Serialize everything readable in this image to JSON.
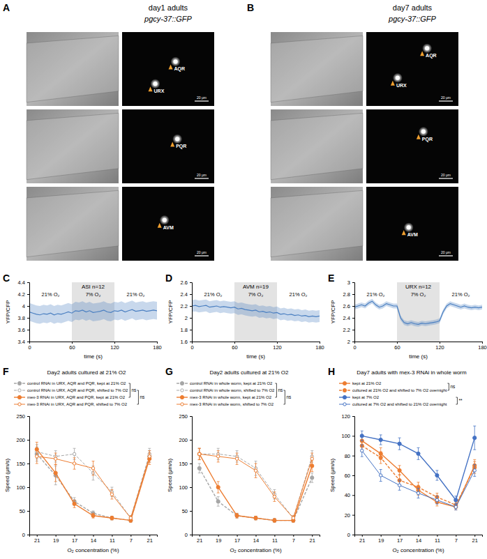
{
  "image_panels": [
    {
      "panel": "A",
      "title": "day1 adults",
      "subtitle": "pgcy-37::GFP",
      "scale_bar": "20 μm",
      "rows": [
        [
          "AQR",
          "URX"
        ],
        [
          "PQR"
        ],
        [
          "AVM"
        ]
      ]
    },
    {
      "panel": "B",
      "title": "day7 adults",
      "subtitle": "pgcy-37::GFP",
      "scale_bar": "20 μm",
      "rows": [
        [
          "AQR",
          "URX"
        ],
        [
          "PQR"
        ],
        [
          "AVM"
        ]
      ]
    }
  ],
  "chart_data": [
    {
      "type": "area_line",
      "panel": "C",
      "title": "ASI n=12",
      "xlabel": "time (s)",
      "ylabel": "YFP/CFP",
      "color": "#4a7fc1",
      "x": [
        0,
        5,
        10,
        15,
        20,
        25,
        30,
        35,
        40,
        45,
        50,
        55,
        60,
        65,
        70,
        75,
        80,
        85,
        90,
        95,
        100,
        105,
        110,
        115,
        120,
        125,
        130,
        135,
        140,
        145,
        150,
        155,
        160,
        165,
        170,
        175,
        180
      ],
      "values": [
        3.9,
        3.88,
        3.86,
        3.85,
        3.87,
        3.86,
        3.88,
        3.85,
        3.87,
        3.86,
        3.88,
        3.9,
        3.88,
        3.92,
        3.91,
        3.93,
        3.9,
        3.92,
        3.89,
        3.9,
        3.91,
        3.93,
        3.9,
        3.89,
        3.92,
        3.91,
        3.93,
        3.9,
        3.92,
        3.94,
        3.91,
        3.92,
        3.93,
        3.91,
        3.92,
        3.93,
        3.92
      ],
      "errors": [
        0.15,
        0.15,
        0.15,
        0.15,
        0.15,
        0.15,
        0.15,
        0.15,
        0.15,
        0.15,
        0.15,
        0.15,
        0.15,
        0.15,
        0.15,
        0.15,
        0.15,
        0.15,
        0.15,
        0.15,
        0.15,
        0.15,
        0.15,
        0.15,
        0.15,
        0.15,
        0.15,
        0.15,
        0.15,
        0.15,
        0.15,
        0.15,
        0.15,
        0.15,
        0.15,
        0.15,
        0.15
      ],
      "xlim": [
        0,
        180
      ],
      "xticks": [
        0,
        60,
        120,
        180
      ],
      "ylim": [
        3.4,
        4.4
      ],
      "yticks": [
        3.4,
        3.6,
        3.8,
        4,
        4.2,
        4.4
      ],
      "highlight": [
        60,
        120
      ],
      "phases": [
        {
          "label": "21% O₂",
          "start": 0,
          "end": 60
        },
        {
          "label": "7% O₂",
          "start": 60,
          "end": 120
        },
        {
          "label": "21% O₂",
          "start": 120,
          "end": 180
        }
      ]
    },
    {
      "type": "area_line",
      "panel": "D",
      "title": "AVM n=19",
      "xlabel": "time (s)",
      "ylabel": "YFP/CFP",
      "color": "#4a7fc1",
      "x": [
        0,
        5,
        10,
        15,
        20,
        25,
        30,
        35,
        40,
        45,
        50,
        55,
        60,
        65,
        70,
        75,
        80,
        85,
        90,
        95,
        100,
        105,
        110,
        115,
        120,
        125,
        130,
        135,
        140,
        145,
        150,
        155,
        160,
        165,
        170,
        175,
        180
      ],
      "values": [
        2.2,
        2.21,
        2.19,
        2.2,
        2.21,
        2.18,
        2.19,
        2.2,
        2.18,
        2.19,
        2.18,
        2.17,
        2.18,
        2.15,
        2.16,
        2.14,
        2.13,
        2.12,
        2.13,
        2.1,
        2.11,
        2.09,
        2.1,
        2.08,
        2.09,
        2.06,
        2.07,
        2.05,
        2.06,
        2.04,
        2.05,
        2.03,
        2.04,
        2.02,
        2.03,
        2.02,
        2.03
      ],
      "errors": [
        0.1,
        0.1,
        0.1,
        0.1,
        0.1,
        0.1,
        0.1,
        0.1,
        0.1,
        0.1,
        0.1,
        0.1,
        0.1,
        0.1,
        0.1,
        0.1,
        0.1,
        0.1,
        0.1,
        0.1,
        0.1,
        0.1,
        0.1,
        0.1,
        0.1,
        0.1,
        0.1,
        0.1,
        0.1,
        0.1,
        0.1,
        0.1,
        0.1,
        0.1,
        0.1,
        0.1,
        0.1
      ],
      "xlim": [
        0,
        180
      ],
      "xticks": [
        0,
        60,
        120,
        180
      ],
      "ylim": [
        1.6,
        2.6
      ],
      "yticks": [
        1.6,
        1.8,
        2,
        2.2,
        2.4,
        2.6
      ],
      "highlight": [
        60,
        120
      ],
      "phases": [
        {
          "label": "21% O₂",
          "start": 0,
          "end": 60
        },
        {
          "label": "7% O₂",
          "start": 60,
          "end": 120
        },
        {
          "label": "21% O₂",
          "start": 120,
          "end": 180
        }
      ]
    },
    {
      "type": "area_line",
      "panel": "E",
      "title": "URX n=12",
      "xlabel": "time (s)",
      "ylabel": "YFP/CFP",
      "color": "#4a7fc1",
      "x": [
        0,
        5,
        10,
        15,
        20,
        25,
        30,
        35,
        40,
        45,
        50,
        55,
        60,
        65,
        70,
        75,
        80,
        85,
        90,
        95,
        100,
        105,
        110,
        115,
        120,
        125,
        130,
        135,
        140,
        145,
        150,
        155,
        160,
        165,
        170,
        175,
        180
      ],
      "values": [
        2.58,
        2.6,
        2.62,
        2.6,
        2.65,
        2.68,
        2.62,
        2.58,
        2.6,
        2.64,
        2.62,
        2.6,
        2.6,
        2.4,
        2.32,
        2.3,
        2.32,
        2.3,
        2.29,
        2.31,
        2.3,
        2.31,
        2.32,
        2.33,
        2.35,
        2.5,
        2.6,
        2.64,
        2.62,
        2.6,
        2.58,
        2.6,
        2.58,
        2.57,
        2.58,
        2.57,
        2.58
      ],
      "errors": [
        0.04,
        0.04,
        0.04,
        0.04,
        0.04,
        0.04,
        0.04,
        0.04,
        0.04,
        0.04,
        0.04,
        0.04,
        0.04,
        0.04,
        0.04,
        0.04,
        0.04,
        0.04,
        0.04,
        0.04,
        0.04,
        0.04,
        0.04,
        0.04,
        0.04,
        0.04,
        0.04,
        0.04,
        0.04,
        0.04,
        0.04,
        0.04,
        0.04,
        0.04,
        0.04,
        0.04,
        0.04
      ],
      "xlim": [
        0,
        180
      ],
      "xticks": [
        0,
        60,
        120,
        180
      ],
      "ylim": [
        2,
        3
      ],
      "yticks": [
        2,
        2.2,
        2.4,
        2.6,
        2.8,
        3
      ],
      "highlight": [
        60,
        120
      ],
      "phases": [
        {
          "label": "21% O₂",
          "start": 0,
          "end": 60
        },
        {
          "label": "7% O₂",
          "start": 60,
          "end": 120
        },
        {
          "label": "21% O₂",
          "start": 120,
          "end": 180
        }
      ]
    },
    {
      "type": "line",
      "panel": "F",
      "title": "Day2 adults cultured at 21% O2",
      "xlabel": "O₂ concentration (%)",
      "ylabel": "Speed (μm/s)",
      "categories": [
        "21",
        "19",
        "17",
        "14",
        "11",
        "7",
        "21"
      ],
      "legend": "top",
      "ylim": [
        0,
        250
      ],
      "yticks": [
        0,
        50,
        100,
        150,
        200,
        250
      ],
      "series": [
        {
          "name": "control RNAi in URX, AQR and PQR, kept at 21% O2",
          "color": "#a6a6a6",
          "line_style": "dashed",
          "marker": "circle",
          "values": [
            170,
            125,
            70,
            45,
            35,
            30,
            165
          ],
          "errors": [
            15,
            20,
            8,
            5,
            4,
            4,
            12
          ]
        },
        {
          "name": "control RNAi in URX, AQR and PQR, shifted to 7% O2",
          "color": "#a6a6a6",
          "line_style": "dashed",
          "marker": "circle-open",
          "values": [
            175,
            165,
            170,
            130,
            90,
            35,
            170
          ],
          "errors": [
            15,
            12,
            12,
            15,
            10,
            5,
            12
          ]
        },
        {
          "name": "mex-3 RNAi in URX, AQR and PQR, kept at 21% O2",
          "color": "#ed7d31",
          "line_style": "solid",
          "marker": "circle",
          "values": [
            180,
            130,
            65,
            40,
            35,
            30,
            160
          ],
          "errors": [
            15,
            18,
            8,
            5,
            4,
            4,
            12
          ]
        },
        {
          "name": "mex-3 RNAi in URX, AQR and PQR, shifted to 7% O2",
          "color": "#ed7d31",
          "line_style": "solid",
          "marker": "circle-open",
          "values": [
            165,
            160,
            150,
            140,
            85,
            35,
            165
          ],
          "errors": [
            15,
            12,
            12,
            15,
            10,
            5,
            12
          ]
        }
      ],
      "comparisons": [
        {
          "series": [
            0,
            2
          ],
          "label": "ns"
        },
        {
          "series": [
            1,
            3
          ],
          "label": "ns"
        }
      ]
    },
    {
      "type": "line",
      "panel": "G",
      "title": "Day2 adults cultured at 21% O2",
      "xlabel": "O₂ concentration (%)",
      "ylabel": "Speed (μm/s)",
      "categories": [
        "21",
        "19",
        "17",
        "14",
        "11",
        "7",
        "21"
      ],
      "legend": "top",
      "ylim": [
        0,
        250
      ],
      "yticks": [
        0,
        50,
        100,
        150,
        200,
        250
      ],
      "series": [
        {
          "name": "control RNAi in whole worm, kept at 21% O2",
          "color": "#a6a6a6",
          "line_style": "dashed",
          "marker": "circle",
          "values": [
            140,
            70,
            40,
            35,
            30,
            30,
            120
          ],
          "errors": [
            10,
            10,
            5,
            4,
            4,
            4,
            10
          ]
        },
        {
          "name": "control RNAi in whole worm, shifted to 7% O2",
          "color": "#a6a6a6",
          "line_style": "dashed",
          "marker": "circle-open",
          "values": [
            170,
            170,
            165,
            140,
            85,
            35,
            165
          ],
          "errors": [
            12,
            12,
            12,
            15,
            10,
            5,
            12
          ]
        },
        {
          "name": "mex-3 RNAi in whole worm, kept at 21% O2",
          "color": "#ed7d31",
          "line_style": "solid",
          "marker": "circle",
          "values": [
            170,
            100,
            40,
            35,
            30,
            30,
            145
          ],
          "errors": [
            12,
            12,
            5,
            4,
            4,
            4,
            12
          ]
        },
        {
          "name": "mex-3 RNAi in whole worm, shifted to 7% O2",
          "color": "#ed7d31",
          "line_style": "solid",
          "marker": "circle-open",
          "values": [
            170,
            165,
            160,
            135,
            80,
            35,
            160
          ],
          "errors": [
            12,
            12,
            12,
            15,
            10,
            5,
            12
          ]
        }
      ],
      "comparisons": [
        {
          "series": [
            0,
            2
          ],
          "label": "ns"
        },
        {
          "series": [
            1,
            3
          ],
          "label": "ns"
        }
      ]
    },
    {
      "type": "line",
      "panel": "H",
      "title": "Day7 adults with mex-3 RNAi in whole worm",
      "xlabel": "O₂ concentration (%)",
      "ylabel": "Speed (μm/s)",
      "categories": [
        "21",
        "19",
        "17",
        "14",
        "11",
        "7",
        "21"
      ],
      "legend": "top",
      "ylim": [
        0,
        120
      ],
      "yticks": [
        0,
        20,
        40,
        60,
        80,
        100,
        120
      ],
      "series": [
        {
          "name": "kept at 21% O2",
          "color": "#ed7d31",
          "line_style": "solid",
          "marker": "circle",
          "values": [
            95,
            82,
            65,
            45,
            33,
            28,
            70
          ],
          "errors": [
            6,
            6,
            5,
            5,
            4,
            3,
            6
          ]
        },
        {
          "name": "cultured at 21% O2 and shifted to 7% O2 overnight",
          "color": "#ed7d31",
          "line_style": "dashed",
          "marker": "circle",
          "values": [
            90,
            78,
            55,
            48,
            38,
            30,
            68
          ],
          "errors": [
            6,
            6,
            6,
            5,
            4,
            3,
            6
          ]
        },
        {
          "name": "kept at 7% O2",
          "color": "#4472c4",
          "line_style": "solid",
          "marker": "circle",
          "values": [
            100,
            96,
            92,
            82,
            60,
            35,
            98
          ],
          "errors": [
            5,
            5,
            6,
            6,
            5,
            4,
            12
          ]
        },
        {
          "name": "cultured at 7% O2 and shifted to 21% O2 overnight",
          "color": "#4472c4",
          "line_style": "solid",
          "marker": "circle-open",
          "values": [
            85,
            60,
            50,
            42,
            35,
            28,
            65
          ],
          "errors": [
            6,
            6,
            5,
            5,
            4,
            3,
            6
          ]
        }
      ],
      "comparisons": [
        {
          "series": [
            0,
            1
          ],
          "label": "ns"
        },
        {
          "series": [
            2,
            3
          ],
          "label": "**"
        }
      ]
    }
  ]
}
